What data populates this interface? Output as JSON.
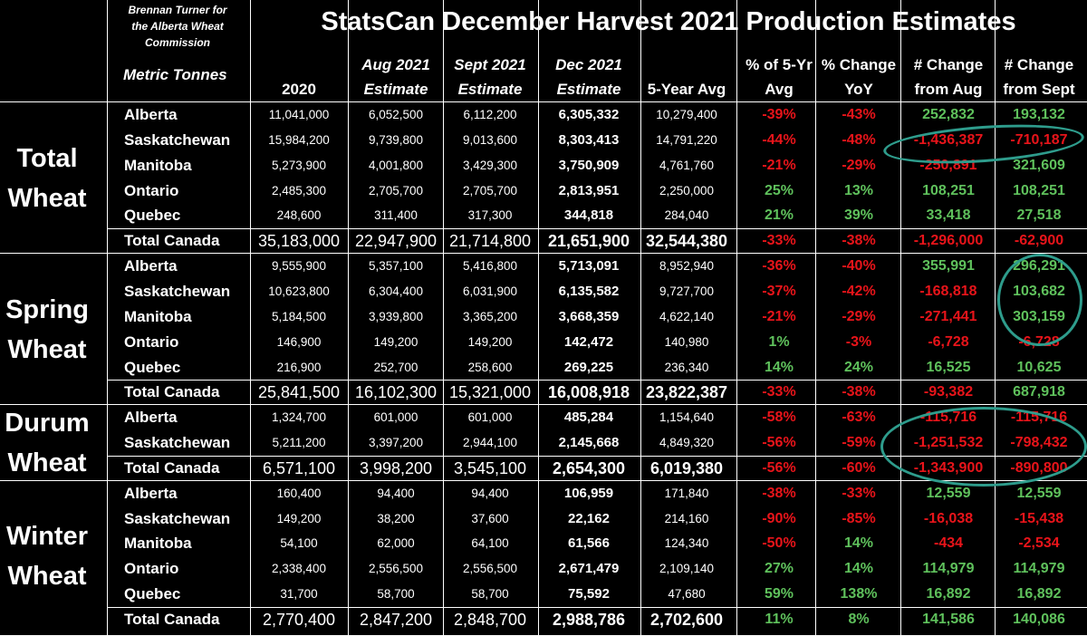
{
  "credit": {
    "line1": "Brennan Turner for",
    "line2": "the Alberta Wheat",
    "line3": "Commission"
  },
  "title": "StatsCan December Harvest 2021 Production Estimates",
  "units_label": "Metric Tonnes",
  "headers": [
    {
      "l1": "",
      "l2": "2020",
      "italic": false
    },
    {
      "l1": "Aug 2021",
      "l2": "Estimate",
      "italic": true
    },
    {
      "l1": "Sept 2021",
      "l2": "Estimate",
      "italic": true
    },
    {
      "l1": "Dec 2021",
      "l2": "Estimate",
      "italic": true
    },
    {
      "l1": "",
      "l2": "5-Year Avg",
      "italic": false
    },
    {
      "l1": "% of 5-Yr",
      "l2": "Avg",
      "italic": false
    },
    {
      "l1": "% Change",
      "l2": "YoY",
      "italic": false
    },
    {
      "l1": "# Change",
      "l2": "from Aug",
      "italic": false
    },
    {
      "l1": "# Change",
      "l2": "from Sept",
      "italic": false
    }
  ],
  "colors": {
    "positive": "#5fc15c",
    "negative": "#e8141a",
    "highlight_ring": "#2e9c8c"
  },
  "groups": [
    {
      "name_l1": "Total",
      "name_l2": "Wheat",
      "rows": [
        {
          "province": "Alberta",
          "y2020": "11,041,000",
          "aug": "6,052,500",
          "sept": "6,112,200",
          "dec": "6,305,332",
          "avg5": "10,279,400",
          "pct5": "-39%",
          "yoy": "-43%",
          "chg_aug": "252,832",
          "chg_sept": "193,132"
        },
        {
          "province": "Saskatchewan",
          "y2020": "15,984,200",
          "aug": "9,739,800",
          "sept": "9,013,600",
          "dec": "8,303,413",
          "avg5": "14,791,220",
          "pct5": "-44%",
          "yoy": "-48%",
          "chg_aug": "-1,436,387",
          "chg_sept": "-710,187"
        },
        {
          "province": "Manitoba",
          "y2020": "5,273,900",
          "aug": "4,001,800",
          "sept": "3,429,300",
          "dec": "3,750,909",
          "avg5": "4,761,760",
          "pct5": "-21%",
          "yoy": "-29%",
          "chg_aug": "-250,891",
          "chg_sept": "321,609"
        },
        {
          "province": "Ontario",
          "y2020": "2,485,300",
          "aug": "2,705,700",
          "sept": "2,705,700",
          "dec": "2,813,951",
          "avg5": "2,250,000",
          "pct5": "25%",
          "yoy": "13%",
          "chg_aug": "108,251",
          "chg_sept": "108,251"
        },
        {
          "province": "Quebec",
          "y2020": "248,600",
          "aug": "311,400",
          "sept": "317,300",
          "dec": "344,818",
          "avg5": "284,040",
          "pct5": "21%",
          "yoy": "39%",
          "chg_aug": "33,418",
          "chg_sept": "27,518"
        }
      ],
      "total": {
        "province": "Total Canada",
        "y2020": "35,183,000",
        "aug": "22,947,900",
        "sept": "21,714,800",
        "dec": "21,651,900",
        "avg5": "32,544,380",
        "pct5": "-33%",
        "yoy": "-38%",
        "chg_aug": "-1,296,000",
        "chg_sept": "-62,900"
      }
    },
    {
      "name_l1": "Spring",
      "name_l2": "Wheat",
      "rows": [
        {
          "province": "Alberta",
          "y2020": "9,555,900",
          "aug": "5,357,100",
          "sept": "5,416,800",
          "dec": "5,713,091",
          "avg5": "8,952,940",
          "pct5": "-36%",
          "yoy": "-40%",
          "chg_aug": "355,991",
          "chg_sept": "296,291"
        },
        {
          "province": "Saskatchewan",
          "y2020": "10,623,800",
          "aug": "6,304,400",
          "sept": "6,031,900",
          "dec": "6,135,582",
          "avg5": "9,727,700",
          "pct5": "-37%",
          "yoy": "-42%",
          "chg_aug": "-168,818",
          "chg_sept": "103,682"
        },
        {
          "province": "Manitoba",
          "y2020": "5,184,500",
          "aug": "3,939,800",
          "sept": "3,365,200",
          "dec": "3,668,359",
          "avg5": "4,622,140",
          "pct5": "-21%",
          "yoy": "-29%",
          "chg_aug": "-271,441",
          "chg_sept": "303,159"
        },
        {
          "province": "Ontario",
          "y2020": "146,900",
          "aug": "149,200",
          "sept": "149,200",
          "dec": "142,472",
          "avg5": "140,980",
          "pct5": "1%",
          "yoy": "-3%",
          "chg_aug": "-6,728",
          "chg_sept": "-6,728"
        },
        {
          "province": "Quebec",
          "y2020": "216,900",
          "aug": "252,700",
          "sept": "258,600",
          "dec": "269,225",
          "avg5": "236,340",
          "pct5": "14%",
          "yoy": "24%",
          "chg_aug": "16,525",
          "chg_sept": "10,625"
        }
      ],
      "total": {
        "province": "Total Canada",
        "y2020": "25,841,500",
        "aug": "16,102,300",
        "sept": "15,321,000",
        "dec": "16,008,918",
        "avg5": "23,822,387",
        "pct5": "-33%",
        "yoy": "-38%",
        "chg_aug": "-93,382",
        "chg_sept": "687,918"
      }
    },
    {
      "name_l1": "Durum",
      "name_l2": "Wheat",
      "rows": [
        {
          "province": "Alberta",
          "y2020": "1,324,700",
          "aug": "601,000",
          "sept": "601,000",
          "dec": "485,284",
          "avg5": "1,154,640",
          "pct5": "-58%",
          "yoy": "-63%",
          "chg_aug": "-115,716",
          "chg_sept": "-115,716"
        },
        {
          "province": "Saskatchewan",
          "y2020": "5,211,200",
          "aug": "3,397,200",
          "sept": "2,944,100",
          "dec": "2,145,668",
          "avg5": "4,849,320",
          "pct5": "-56%",
          "yoy": "-59%",
          "chg_aug": "-1,251,532",
          "chg_sept": "-798,432"
        }
      ],
      "total": {
        "province": "Total Canada",
        "y2020": "6,571,100",
        "aug": "3,998,200",
        "sept": "3,545,100",
        "dec": "2,654,300",
        "avg5": "6,019,380",
        "pct5": "-56%",
        "yoy": "-60%",
        "chg_aug": "-1,343,900",
        "chg_sept": "-890,800"
      }
    },
    {
      "name_l1": "Winter",
      "name_l2": "Wheat",
      "rows": [
        {
          "province": "Alberta",
          "y2020": "160,400",
          "aug": "94,400",
          "sept": "94,400",
          "dec": "106,959",
          "avg5": "171,840",
          "pct5": "-38%",
          "yoy": "-33%",
          "chg_aug": "12,559",
          "chg_sept": "12,559"
        },
        {
          "province": "Saskatchewan",
          "y2020": "149,200",
          "aug": "38,200",
          "sept": "37,600",
          "dec": "22,162",
          "avg5": "214,160",
          "pct5": "-90%",
          "yoy": "-85%",
          "chg_aug": "-16,038",
          "chg_sept": "-15,438"
        },
        {
          "province": "Manitoba",
          "y2020": "54,100",
          "aug": "62,000",
          "sept": "64,100",
          "dec": "61,566",
          "avg5": "124,340",
          "pct5": "-50%",
          "yoy": "14%",
          "chg_aug": "-434",
          "chg_sept": "-2,534"
        },
        {
          "province": "Ontario",
          "y2020": "2,338,400",
          "aug": "2,556,500",
          "sept": "2,556,500",
          "dec": "2,671,479",
          "avg5": "2,109,140",
          "pct5": "27%",
          "yoy": "14%",
          "chg_aug": "114,979",
          "chg_sept": "114,979"
        },
        {
          "province": "Quebec",
          "y2020": "31,700",
          "aug": "58,700",
          "sept": "58,700",
          "dec": "75,592",
          "avg5": "47,680",
          "pct5": "59%",
          "yoy": "138%",
          "chg_aug": "16,892",
          "chg_sept": "16,892"
        }
      ],
      "total": {
        "province": "Total Canada",
        "y2020": "2,770,400",
        "aug": "2,847,200",
        "sept": "2,848,700",
        "dec": "2,988,786",
        "avg5": "2,702,600",
        "pct5": "11%",
        "yoy": "8%",
        "chg_aug": "141,586",
        "chg_sept": "140,086"
      }
    }
  ]
}
